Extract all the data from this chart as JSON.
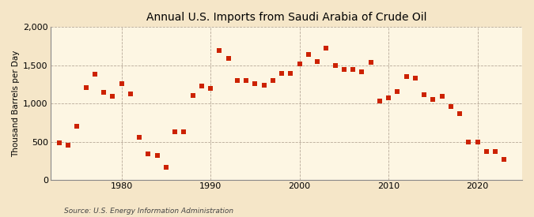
{
  "title": "Annual U.S. Imports from Saudi Arabia of Crude Oil",
  "ylabel": "Thousand Barrels per Day",
  "source": "Source: U.S. Energy Information Administration",
  "background_color": "#f5e6c8",
  "plot_background_color": "#fdf6e3",
  "marker_color": "#cc2200",
  "years": [
    1973,
    1974,
    1975,
    1976,
    1977,
    1978,
    1979,
    1980,
    1981,
    1982,
    1983,
    1984,
    1985,
    1986,
    1987,
    1988,
    1989,
    1990,
    1991,
    1992,
    1993,
    1994,
    1995,
    1996,
    1997,
    1998,
    1999,
    2000,
    2001,
    2002,
    2003,
    2004,
    2005,
    2006,
    2007,
    2008,
    2009,
    2010,
    2011,
    2012,
    2013,
    2014,
    2015,
    2016,
    2017,
    2018,
    2019,
    2020,
    2021,
    2022,
    2023
  ],
  "values": [
    481,
    459,
    700,
    1213,
    1380,
    1144,
    1096,
    1261,
    1128,
    556,
    337,
    325,
    168,
    627,
    625,
    1101,
    1224,
    1195,
    1692,
    1588,
    1296,
    1306,
    1260,
    1244,
    1306,
    1394,
    1395,
    1523,
    1647,
    1551,
    1720,
    1495,
    1445,
    1444,
    1415,
    1536,
    1029,
    1079,
    1153,
    1355,
    1334,
    1115,
    1055,
    1099,
    957,
    863,
    499,
    494,
    375,
    373,
    270
  ],
  "ylim": [
    0,
    2000
  ],
  "yticks": [
    0,
    500,
    1000,
    1500,
    2000
  ],
  "xticks": [
    1980,
    1990,
    2000,
    2010,
    2020
  ],
  "xlim": [
    1972,
    2025
  ],
  "title_fontsize": 10,
  "ylabel_fontsize": 7.5,
  "tick_fontsize": 8,
  "source_fontsize": 6.5,
  "marker_size": 13
}
